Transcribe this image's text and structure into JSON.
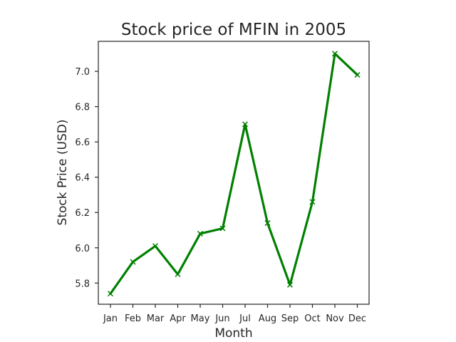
{
  "chart_data": {
    "type": "line",
    "title": "Stock price of MFIN in 2005",
    "xlabel": "Month",
    "ylabel": "Stock Price (USD)",
    "categories": [
      "Jan",
      "Feb",
      "Mar",
      "Apr",
      "May",
      "Jun",
      "Jul",
      "Aug",
      "Sep",
      "Oct",
      "Nov",
      "Dec"
    ],
    "series": [
      {
        "values": [
          5.74,
          5.92,
          6.01,
          5.85,
          6.08,
          6.11,
          6.7,
          6.14,
          5.79,
          6.26,
          7.1,
          6.98
        ],
        "color": "#008000",
        "marker": "x"
      }
    ],
    "ylim": [
      5.68,
      7.17
    ],
    "yticks": [
      "5.8",
      "6.0",
      "6.2",
      "6.4",
      "6.6",
      "6.8",
      "7.0"
    ],
    "grid": false
  }
}
